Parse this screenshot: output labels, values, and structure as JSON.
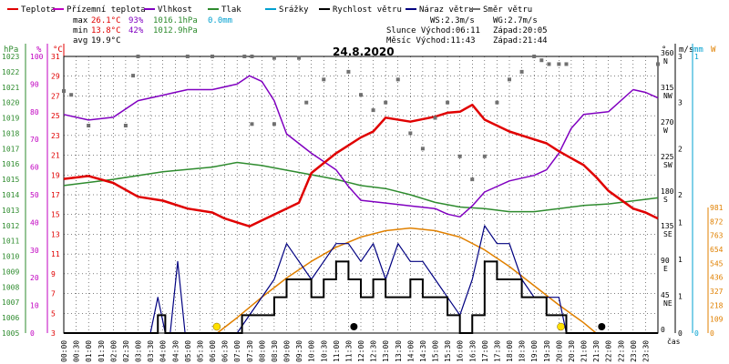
{
  "chart_data": {
    "type": "line",
    "title": "24.8.2020",
    "legend": [
      {
        "name": "Teplota",
        "color": "#e00000"
      },
      {
        "name": "Přízemní teplota",
        "color": "#c000c0"
      },
      {
        "name": "Vlhkost",
        "color": "#8000c0"
      },
      {
        "name": "Tlak",
        "color": "#2e8b2e"
      },
      {
        "name": "Srážky",
        "color": "#00a0d0"
      },
      {
        "name": "Rychlost větru",
        "color": "#000000"
      },
      {
        "name": "Náraz větru",
        "color": "#000080"
      },
      {
        "name": "Směr větru",
        "color": "#707070"
      }
    ],
    "stats": {
      "max_label": "max",
      "min_label": "min",
      "avg_label": "avg",
      "max_temp": "26.1°C",
      "max_hum": "93%",
      "max_press": "1016.1hPa",
      "rain": "0.0mm",
      "min_temp": "13.8°C",
      "min_hum": "42%",
      "min_press": "1012.9hPa",
      "avg_temp": "19.9°C"
    },
    "info": {
      "ws": "WS:2.3m/s",
      "wg": "WG:2.7m/s",
      "sun": "Slunce Východ:06:11",
      "sun_set": "Západ:20:05",
      "moon": "Měsíc Východ:11:43",
      "moon_set": "Západ:21:44"
    },
    "axes": {
      "units": [
        "hPa",
        "%",
        "°C",
        "°",
        "m/s",
        "mm",
        "W"
      ],
      "hpa_ticks": [
        "1023",
        "1022",
        "1021",
        "1020",
        "1019",
        "1018",
        "1017",
        "1016",
        "1015",
        "1014",
        "1013",
        "1012",
        "1011",
        "1010",
        "1009",
        "1008",
        "1007",
        "1006",
        "1005"
      ],
      "hum_ticks": [
        "100",
        "90",
        "80",
        "70",
        "60",
        "50",
        "40",
        "30",
        "20",
        "10",
        "0"
      ],
      "temp_ticks": [
        "31",
        "29",
        "27",
        "25",
        "23",
        "21",
        "19",
        "17",
        "15",
        "13",
        "11",
        "9",
        "7",
        "5",
        "3"
      ],
      "dir_ticks": [
        {
          "deg": "360",
          "dir": "N"
        },
        {
          "deg": "315",
          "dir": "NW"
        },
        {
          "deg": "270",
          "dir": "W"
        },
        {
          "deg": "225",
          "dir": "SW"
        },
        {
          "deg": "180",
          "dir": "S"
        },
        {
          "deg": "135",
          "dir": "SE"
        },
        {
          "deg": "90",
          "dir": "E"
        },
        {
          "deg": "45",
          "dir": "NE"
        },
        {
          "deg": "0",
          "dir": ""
        }
      ],
      "wind_ticks": [
        "3",
        "3",
        "2",
        "2",
        "1",
        "1",
        "1",
        "0"
      ],
      "rain_ticks": [
        "1",
        "0"
      ],
      "solar_ticks": [
        "981",
        "872",
        "763",
        "654",
        "545",
        "436",
        "327",
        "218",
        "109",
        "0"
      ],
      "time_ticks": [
        "00:00",
        "00:30",
        "01:00",
        "01:30",
        "02:00",
        "02:30",
        "03:00",
        "03:30",
        "04:00",
        "04:30",
        "05:00",
        "05:30",
        "06:00",
        "06:30",
        "07:00",
        "07:30",
        "08:00",
        "08:30",
        "09:00",
        "09:30",
        "10:00",
        "10:30",
        "11:00",
        "11:30",
        "12:00",
        "12:30",
        "13:00",
        "13:30",
        "14:00",
        "14:30",
        "15:00",
        "15:30",
        "16:00",
        "16:30",
        "17:00",
        "17:30",
        "18:00",
        "18:30",
        "19:00",
        "19:30",
        "20:00",
        "20:30",
        "21:00",
        "21:30",
        "22:00",
        "22:30",
        "23:00",
        "23:30"
      ],
      "x_label": "čas"
    },
    "series": [
      {
        "name": "Teplota",
        "color": "#e00000",
        "values": [
          [
            0,
            18.6
          ],
          [
            1,
            18.9
          ],
          [
            2,
            18.2
          ],
          [
            3,
            16.8
          ],
          [
            4,
            16.4
          ],
          [
            5,
            15.6
          ],
          [
            6,
            15.2
          ],
          [
            6.5,
            14.6
          ],
          [
            7,
            14.2
          ],
          [
            7.5,
            13.8
          ],
          [
            8,
            14.4
          ],
          [
            9,
            15.6
          ],
          [
            9.5,
            16.2
          ],
          [
            10,
            19.2
          ],
          [
            11,
            21.2
          ],
          [
            12,
            22.8
          ],
          [
            12.5,
            23.4
          ],
          [
            13,
            24.8
          ],
          [
            14,
            24.4
          ],
          [
            15,
            24.9
          ],
          [
            15.5,
            25.3
          ],
          [
            16,
            25.4
          ],
          [
            16.5,
            26.1
          ],
          [
            17,
            24.6
          ],
          [
            18,
            23.4
          ],
          [
            19,
            22.6
          ],
          [
            19.5,
            22.2
          ],
          [
            20,
            21.4
          ],
          [
            21,
            20.0
          ],
          [
            21.5,
            18.8
          ],
          [
            22,
            17.4
          ],
          [
            23,
            15.6
          ],
          [
            23.5,
            15.2
          ],
          [
            24,
            14.6
          ]
        ]
      },
      {
        "name": "Vlhkost",
        "color": "#8000c0",
        "values": [
          [
            0,
            79
          ],
          [
            1,
            77
          ],
          [
            2,
            78
          ],
          [
            3,
            84
          ],
          [
            4,
            86
          ],
          [
            4.5,
            87
          ],
          [
            5,
            88
          ],
          [
            6,
            88
          ],
          [
            7,
            90
          ],
          [
            7.5,
            93
          ],
          [
            8,
            91
          ],
          [
            8.5,
            84
          ],
          [
            9,
            72
          ],
          [
            10,
            65
          ],
          [
            11,
            59
          ],
          [
            11.5,
            53
          ],
          [
            12,
            48
          ],
          [
            13,
            47
          ],
          [
            14,
            46
          ],
          [
            15,
            45
          ],
          [
            15.5,
            43
          ],
          [
            16,
            42
          ],
          [
            16.5,
            46
          ],
          [
            17,
            51
          ],
          [
            18,
            55
          ],
          [
            19,
            57
          ],
          [
            19.5,
            59
          ],
          [
            20,
            65
          ],
          [
            20.5,
            74
          ],
          [
            21,
            79
          ],
          [
            22,
            80
          ],
          [
            23,
            88
          ],
          [
            23.5,
            87
          ],
          [
            24,
            85
          ]
        ]
      },
      {
        "name": "Tlak",
        "color": "#2e8b2e",
        "values": [
          [
            0,
            1014.6
          ],
          [
            2,
            1015.0
          ],
          [
            4,
            1015.5
          ],
          [
            6,
            1015.8
          ],
          [
            7,
            1016.1
          ],
          [
            8,
            1015.9
          ],
          [
            9,
            1015.6
          ],
          [
            10,
            1015.3
          ],
          [
            11,
            1015.0
          ],
          [
            12,
            1014.6
          ],
          [
            13,
            1014.4
          ],
          [
            14,
            1014.0
          ],
          [
            15,
            1013.5
          ],
          [
            16,
            1013.2
          ],
          [
            17,
            1013.1
          ],
          [
            18,
            1012.9
          ],
          [
            19,
            1012.9
          ],
          [
            20,
            1013.1
          ],
          [
            21,
            1013.3
          ],
          [
            22,
            1013.4
          ],
          [
            23,
            1013.6
          ],
          [
            24,
            1013.8
          ]
        ]
      },
      {
        "name": "Rychlost větru",
        "color": "#000000",
        "values": [
          [
            0,
            0
          ],
          [
            3.5,
            0
          ],
          [
            3.8,
            0.5
          ],
          [
            4.1,
            0
          ],
          [
            7,
            0
          ],
          [
            7.2,
            0.5
          ],
          [
            8,
            0.5
          ],
          [
            8.5,
            1.0
          ],
          [
            9,
            1.5
          ],
          [
            9.5,
            1.5
          ],
          [
            10,
            1.0
          ],
          [
            10.5,
            1.5
          ],
          [
            11,
            2.0
          ],
          [
            11.5,
            1.5
          ],
          [
            12,
            1.0
          ],
          [
            12.5,
            1.5
          ],
          [
            13,
            1.0
          ],
          [
            13.5,
            1.0
          ],
          [
            14,
            1.5
          ],
          [
            14.5,
            1.0
          ],
          [
            15,
            1.0
          ],
          [
            15.5,
            0.5
          ],
          [
            16,
            0
          ],
          [
            16.5,
            0.5
          ],
          [
            17,
            2.0
          ],
          [
            17.5,
            1.5
          ],
          [
            18,
            1.5
          ],
          [
            18.5,
            1.0
          ],
          [
            19,
            1.0
          ],
          [
            19.5,
            0.5
          ],
          [
            20,
            0.5
          ],
          [
            20.3,
            0
          ],
          [
            24,
            0
          ]
        ]
      },
      {
        "name": "Náraz větru",
        "color": "#000080",
        "values": [
          [
            0,
            0
          ],
          [
            3.5,
            0
          ],
          [
            3.8,
            1.0
          ],
          [
            4.1,
            0
          ],
          [
            4.3,
            0
          ],
          [
            4.6,
            2.0
          ],
          [
            4.9,
            0
          ],
          [
            7,
            0
          ],
          [
            8.5,
            1.5
          ],
          [
            9,
            2.5
          ],
          [
            9.5,
            2.0
          ],
          [
            10,
            1.5
          ],
          [
            10.5,
            2.0
          ],
          [
            11,
            2.5
          ],
          [
            11.5,
            2.5
          ],
          [
            12,
            2.0
          ],
          [
            12.5,
            2.5
          ],
          [
            13,
            1.5
          ],
          [
            13.5,
            2.5
          ],
          [
            14,
            2.0
          ],
          [
            14.5,
            2.0
          ],
          [
            15,
            1.5
          ],
          [
            15.5,
            1.0
          ],
          [
            16,
            0.5
          ],
          [
            16.5,
            1.5
          ],
          [
            17,
            3.0
          ],
          [
            17.5,
            2.5
          ],
          [
            18,
            2.5
          ],
          [
            18.5,
            1.5
          ],
          [
            19,
            1.0
          ],
          [
            19.5,
            1.0
          ],
          [
            20,
            1.0
          ],
          [
            20.3,
            0
          ],
          [
            24,
            0
          ]
        ]
      },
      {
        "name": "Směr větru",
        "color": "#707070",
        "values": [
          [
            0,
            315
          ],
          [
            0.3,
            310
          ],
          [
            1,
            270
          ],
          [
            2.5,
            270
          ],
          [
            2.8,
            335
          ],
          [
            3,
            360
          ],
          [
            5,
            360
          ],
          [
            6,
            360
          ],
          [
            7.3,
            360
          ],
          [
            7.6,
            360
          ],
          [
            7.6,
            272
          ],
          [
            8.5,
            272
          ],
          [
            8.5,
            358
          ],
          [
            9.5,
            358
          ],
          [
            9.8,
            300
          ],
          [
            10.5,
            330
          ],
          [
            11.5,
            340
          ],
          [
            12,
            310
          ],
          [
            12.5,
            290
          ],
          [
            13,
            300
          ],
          [
            13.5,
            330
          ],
          [
            14,
            260
          ],
          [
            14.5,
            240
          ],
          [
            15,
            280
          ],
          [
            15.5,
            300
          ],
          [
            16,
            230
          ],
          [
            16.5,
            200
          ],
          [
            17,
            230
          ],
          [
            17.5,
            300
          ],
          [
            18,
            330
          ],
          [
            18.5,
            340
          ],
          [
            19,
            360
          ],
          [
            19.3,
            355
          ],
          [
            19.6,
            350
          ],
          [
            20,
            350
          ],
          [
            20.3,
            350
          ],
          [
            24,
            350
          ]
        ]
      },
      {
        "name": "Solar",
        "color": "#e08000",
        "values": [
          [
            6.2,
            0
          ],
          [
            7,
            120
          ],
          [
            8,
            280
          ],
          [
            9,
            430
          ],
          [
            10,
            560
          ],
          [
            11,
            670
          ],
          [
            12,
            750
          ],
          [
            13,
            800
          ],
          [
            14,
            820
          ],
          [
            15,
            800
          ],
          [
            16,
            750
          ],
          [
            17,
            650
          ],
          [
            18,
            520
          ],
          [
            19,
            370
          ],
          [
            20,
            220
          ],
          [
            21,
            80
          ],
          [
            21.5,
            0
          ]
        ]
      }
    ]
  }
}
